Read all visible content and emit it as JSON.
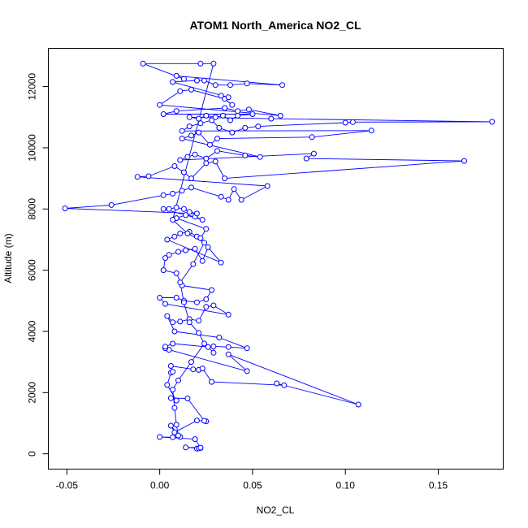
{
  "chart_data": {
    "type": "line",
    "title": "ATOM1 North_America NO2_CL",
    "xlabel": "NO2_CL",
    "ylabel": "Altitude (m)",
    "xlim": [
      -0.06,
      0.185
    ],
    "ylim": [
      -500,
      13250
    ],
    "x_ticks": [
      -0.05,
      0.0,
      0.05,
      0.1,
      0.15
    ],
    "x_tick_labels": [
      "-0.05",
      "0.00",
      "0.05",
      "0.10",
      "0.15"
    ],
    "y_ticks": [
      0,
      2000,
      4000,
      6000,
      8000,
      10000,
      12000
    ],
    "y_tick_labels": [
      "0",
      "2000",
      "4000",
      "6000",
      "8000",
      "10000",
      "12000"
    ],
    "grid": false,
    "legend": "none",
    "series_color": "#0000ff",
    "marker": "open-circle",
    "series": [
      {
        "points": [
          [
            0.02,
            170
          ],
          [
            0.022,
            190
          ],
          [
            0.021,
            180
          ],
          [
            0.014,
            210
          ],
          [
            0.022,
            200
          ],
          [
            0.019,
            480
          ],
          [
            0.0,
            550
          ],
          [
            0.007,
            540
          ],
          [
            0.011,
            550
          ],
          [
            0.006,
            920
          ],
          [
            0.008,
            700
          ],
          [
            0.02,
            1090
          ],
          [
            0.025,
            1060
          ],
          [
            0.024,
            1080
          ],
          [
            0.015,
            1810
          ],
          [
            0.006,
            1820
          ],
          [
            0.009,
            1740
          ],
          [
            0.004,
            2250
          ],
          [
            0.006,
            2650
          ],
          [
            0.007,
            2680
          ],
          [
            0.006,
            2870
          ],
          [
            0.018,
            2760
          ],
          [
            0.021,
            2740
          ],
          [
            0.023,
            2790
          ],
          [
            0.028,
            2350
          ],
          [
            0.067,
            2240
          ],
          [
            0.063,
            2300
          ],
          [
            0.107,
            1610
          ],
          [
            0.037,
            3250
          ],
          [
            0.047,
            2700
          ],
          [
            0.005,
            3400
          ],
          [
            0.003,
            3450
          ],
          [
            0.003,
            3500
          ],
          [
            0.007,
            3600
          ],
          [
            0.026,
            3490
          ],
          [
            0.029,
            3300
          ],
          [
            0.029,
            3510
          ],
          [
            0.037,
            3490
          ],
          [
            0.047,
            3450
          ],
          [
            0.032,
            3800
          ],
          [
            0.008,
            4000
          ],
          [
            0.004,
            4500
          ],
          [
            0.007,
            4300
          ],
          [
            0.011,
            4320
          ],
          [
            0.016,
            4400
          ],
          [
            0.021,
            4350
          ],
          [
            0.025,
            4800
          ],
          [
            0.029,
            4850
          ],
          [
            0.037,
            4550
          ],
          [
            0.003,
            4900
          ],
          [
            0.0,
            5100
          ],
          [
            0.009,
            5100
          ],
          [
            0.013,
            5000
          ],
          [
            0.02,
            4950
          ],
          [
            0.025,
            5050
          ],
          [
            0.028,
            5350
          ],
          [
            0.012,
            5500
          ],
          [
            0.009,
            5900
          ],
          [
            0.002,
            6000
          ],
          [
            0.003,
            6400
          ],
          [
            0.005,
            6500
          ],
          [
            0.01,
            6600
          ],
          [
            0.014,
            6650
          ],
          [
            0.019,
            6700
          ],
          [
            0.023,
            6300
          ],
          [
            0.026,
            6750
          ],
          [
            0.033,
            6250
          ],
          [
            0.004,
            7000
          ],
          [
            0.008,
            7100
          ],
          [
            0.011,
            7200
          ],
          [
            0.016,
            7250
          ],
          [
            0.02,
            7100
          ],
          [
            0.022,
            7050
          ],
          [
            0.025,
            7350
          ],
          [
            0.009,
            7700
          ],
          [
            0.014,
            7800
          ],
          [
            0.019,
            7750
          ],
          [
            0.023,
            7650
          ],
          [
            0.002,
            8000
          ],
          [
            0.005,
            8000
          ],
          [
            0.009,
            8050
          ],
          [
            0.013,
            8000
          ],
          [
            0.016,
            7900
          ],
          [
            0.02,
            7850
          ],
          [
            -0.051,
            8020
          ],
          [
            -0.026,
            8130
          ],
          [
            0.002,
            8450
          ],
          [
            0.007,
            8500
          ],
          [
            0.012,
            8600
          ],
          [
            0.017,
            8700
          ],
          [
            0.033,
            8400
          ],
          [
            0.037,
            8300
          ],
          [
            0.04,
            8650
          ],
          [
            0.044,
            8300
          ],
          [
            0.058,
            8750
          ],
          [
            -0.012,
            9050
          ],
          [
            -0.006,
            9070
          ],
          [
            0.008,
            9400
          ],
          [
            0.013,
            9200
          ],
          [
            0.017,
            9000
          ],
          [
            0.025,
            9500
          ],
          [
            0.03,
            9550
          ],
          [
            0.035,
            9000
          ],
          [
            0.164,
            9570
          ],
          [
            0.079,
            9650
          ],
          [
            0.083,
            9810
          ],
          [
            0.011,
            9600
          ],
          [
            0.015,
            9700
          ],
          [
            0.019,
            9780
          ],
          [
            0.025,
            9650
          ],
          [
            0.031,
            9900
          ],
          [
            0.046,
            9750
          ],
          [
            0.054,
            9700
          ],
          [
            0.012,
            10300
          ],
          [
            0.017,
            10400
          ],
          [
            0.021,
            10500
          ],
          [
            0.027,
            10100
          ],
          [
            0.031,
            10300
          ],
          [
            0.082,
            10350
          ],
          [
            0.114,
            10560
          ],
          [
            0.012,
            10550
          ],
          [
            0.016,
            10700
          ],
          [
            0.022,
            10800
          ],
          [
            0.028,
            10900
          ],
          [
            0.032,
            10650
          ],
          [
            0.039,
            10500
          ],
          [
            0.046,
            10650
          ],
          [
            0.053,
            10700
          ],
          [
            0.1,
            10820
          ],
          [
            0.104,
            10840
          ],
          [
            0.179,
            10850
          ],
          [
            0.06,
            10950
          ],
          [
            0.016,
            11000
          ],
          [
            0.021,
            10950
          ],
          [
            0.025,
            11050
          ],
          [
            0.03,
            11000
          ],
          [
            0.034,
            11050
          ],
          [
            0.038,
            10900
          ],
          [
            0.042,
            11050
          ],
          [
            0.05,
            11100
          ],
          [
            0.002,
            11100
          ],
          [
            0.009,
            11200
          ],
          [
            0.035,
            11300
          ],
          [
            0.042,
            11200
          ],
          [
            0.048,
            11250
          ],
          [
            0.065,
            11050
          ],
          [
            0.0,
            11400
          ],
          [
            0.011,
            11850
          ],
          [
            0.017,
            11900
          ],
          [
            0.035,
            11600
          ],
          [
            0.039,
            11400
          ],
          [
            0.033,
            11700
          ],
          [
            0.037,
            11650
          ],
          [
            0.007,
            12150
          ],
          [
            0.02,
            12200
          ],
          [
            0.024,
            12200
          ],
          [
            0.03,
            12050
          ],
          [
            0.038,
            12050
          ],
          [
            0.047,
            12100
          ],
          [
            0.066,
            12050
          ],
          [
            0.009,
            12350
          ],
          [
            0.013,
            12250
          ],
          [
            -0.009,
            12750
          ],
          [
            0.022,
            12750
          ],
          [
            0.029,
            12750
          ],
          [
            0.007,
            7650
          ],
          [
            0.015,
            7200
          ],
          [
            0.024,
            6900
          ],
          [
            0.018,
            6200
          ],
          [
            0.011,
            5600
          ],
          [
            0.013,
            4950
          ],
          [
            0.016,
            4300
          ],
          [
            0.021,
            3950
          ],
          [
            0.024,
            3600
          ],
          [
            0.017,
            3000
          ],
          [
            0.01,
            2400
          ],
          [
            0.007,
            2100
          ],
          [
            0.008,
            1500
          ],
          [
            0.009,
            950
          ],
          [
            0.01,
            600
          ]
        ]
      }
    ]
  }
}
